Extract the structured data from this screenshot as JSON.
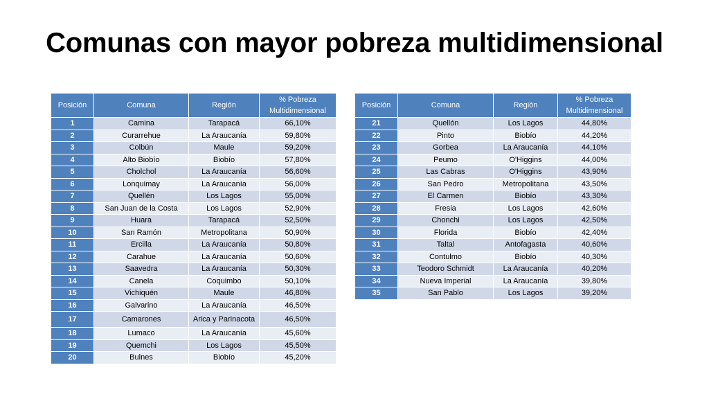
{
  "title": "Comunas con mayor pobreza multidimensional",
  "headers": {
    "posicion": "Posición",
    "comuna": "Comuna",
    "region": "Región",
    "pobreza_line1": "% Pobreza",
    "pobreza_line2": "Multidimensional"
  },
  "table_left": [
    {
      "pos": "1",
      "comuna": "Camina",
      "region": "Tarapacá",
      "pct": "66,10%"
    },
    {
      "pos": "2",
      "comuna": "Curarrehue",
      "region": "La Araucanía",
      "pct": "59,80%"
    },
    {
      "pos": "3",
      "comuna": "Colbún",
      "region": "Maule",
      "pct": "59,20%"
    },
    {
      "pos": "4",
      "comuna": "Alto Biobío",
      "region": "Biobío",
      "pct": "57,80%"
    },
    {
      "pos": "5",
      "comuna": "Cholchol",
      "region": "La Araucanía",
      "pct": "56,60%"
    },
    {
      "pos": "6",
      "comuna": "Lonquimay",
      "region": "La Araucanía",
      "pct": "56,00%"
    },
    {
      "pos": "7",
      "comuna": "Quellén",
      "region": "Los Lagos",
      "pct": "55,00%"
    },
    {
      "pos": "8",
      "comuna": "San Juan de la Costa",
      "region": "Los Lagos",
      "pct": "52,90%"
    },
    {
      "pos": "9",
      "comuna": "Huara",
      "region": "Tarapacá",
      "pct": "52,50%"
    },
    {
      "pos": "10",
      "comuna": "San Ramón",
      "region": "Metropolitana",
      "pct": "50,90%"
    },
    {
      "pos": "11",
      "comuna": "Ercilla",
      "region": "La Araucanía",
      "pct": "50,80%"
    },
    {
      "pos": "12",
      "comuna": "Carahue",
      "region": "La Araucanía",
      "pct": "50,60%"
    },
    {
      "pos": "13",
      "comuna": "Saavedra",
      "region": "La Araucanía",
      "pct": "50,30%"
    },
    {
      "pos": "14",
      "comuna": "Canela",
      "region": "Coquimbo",
      "pct": "50,10%"
    },
    {
      "pos": "15",
      "comuna": "Vichiquén",
      "region": "Maule",
      "pct": "46,80%"
    },
    {
      "pos": "16",
      "comuna": "Galvarino",
      "region": "La Araucanía",
      "pct": "46,50%"
    },
    {
      "pos": "17",
      "comuna": "Camarones",
      "region": "Arica y Parinacota",
      "pct": "46,50%"
    },
    {
      "pos": "18",
      "comuna": "Lumaco",
      "region": "La Araucanía",
      "pct": "45,60%"
    },
    {
      "pos": "19",
      "comuna": "Quemchi",
      "region": "Los Lagos",
      "pct": "45,50%"
    },
    {
      "pos": "20",
      "comuna": "Bulnes",
      "region": "Biobío",
      "pct": "45,20%"
    }
  ],
  "table_right": [
    {
      "pos": "21",
      "comuna": "Quellón",
      "region": "Los Lagos",
      "pct": "44,80%"
    },
    {
      "pos": "22",
      "comuna": "Pinto",
      "region": "Biobío",
      "pct": "44,20%"
    },
    {
      "pos": "23",
      "comuna": "Gorbea",
      "region": "La Araucanía",
      "pct": "44,10%"
    },
    {
      "pos": "24",
      "comuna": "Peumo",
      "region": "O'Higgins",
      "pct": "44,00%"
    },
    {
      "pos": "25",
      "comuna": "Las Cabras",
      "region": "O'Higgins",
      "pct": "43,90%"
    },
    {
      "pos": "26",
      "comuna": "San Pedro",
      "region": "Metropolitana",
      "pct": "43,50%"
    },
    {
      "pos": "27",
      "comuna": "El Carmen",
      "region": "Biobío",
      "pct": "43,30%"
    },
    {
      "pos": "28",
      "comuna": "Fresia",
      "region": "Los Lagos",
      "pct": "42,60%"
    },
    {
      "pos": "29",
      "comuna": "Chonchi",
      "region": "Los Lagos",
      "pct": "42,50%"
    },
    {
      "pos": "30",
      "comuna": "Florida",
      "region": "Biobío",
      "pct": "42,40%"
    },
    {
      "pos": "31",
      "comuna": "Taltal",
      "region": "Antofagasta",
      "pct": "40,60%"
    },
    {
      "pos": "32",
      "comuna": "Contulmo",
      "region": "Biobío",
      "pct": "40,30%"
    },
    {
      "pos": "33",
      "comuna": "Teodoro Schmidt",
      "region": "La Araucanía",
      "pct": "40,20%"
    },
    {
      "pos": "34",
      "comuna": "Nueva Imperial",
      "region": "La Araucanía",
      "pct": "39,80%"
    },
    {
      "pos": "35",
      "comuna": "San Pablo",
      "region": "Los Lagos",
      "pct": "39,20%"
    }
  ]
}
